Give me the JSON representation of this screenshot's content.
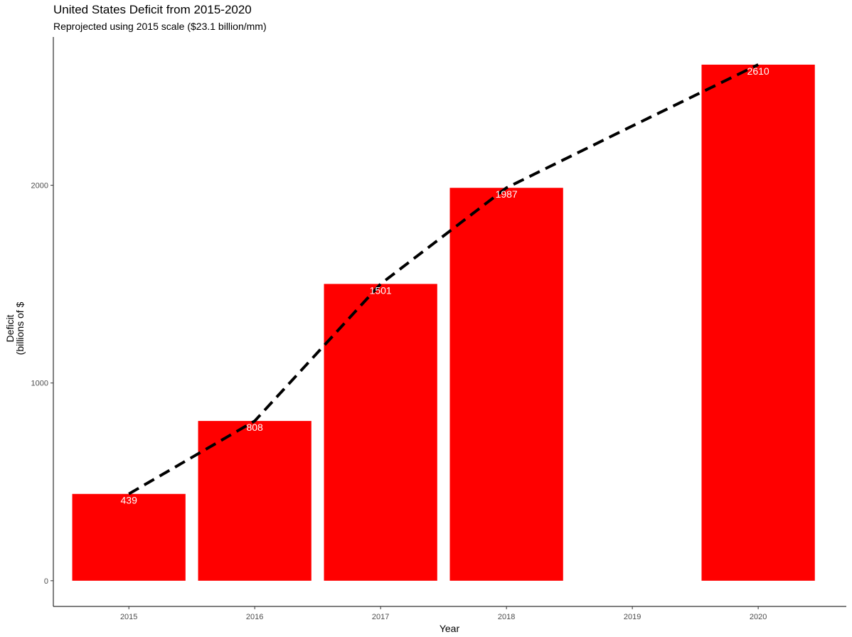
{
  "chart_data": {
    "type": "bar",
    "title": "United States Deficit from 2015-2020",
    "subtitle": "Reprojected using 2015 scale ($23.1 billion/mm)",
    "xlabel": "Year",
    "ylabel_line1": "Deficit",
    "ylabel_line2": "(billions of $",
    "categories": [
      "2015",
      "2016",
      "2017",
      "2018",
      "2019",
      "2020"
    ],
    "bars": [
      {
        "year": "2015",
        "value": 439,
        "label": "439"
      },
      {
        "year": "2016",
        "value": 808,
        "label": "808"
      },
      {
        "year": "2017",
        "value": 1501,
        "label": "1501"
      },
      {
        "year": "2018",
        "value": 1987,
        "label": "1987"
      },
      {
        "year": "2020",
        "value": 2610,
        "label": "2610"
      }
    ],
    "line": {
      "style": "dashed",
      "points": [
        {
          "x": 2015,
          "y": 439
        },
        {
          "x": 2016,
          "y": 808
        },
        {
          "x": 2017,
          "y": 1501
        },
        {
          "x": 2018,
          "y": 1987
        },
        {
          "x": 2019,
          "y": 2300
        },
        {
          "x": 2020,
          "y": 2610
        }
      ]
    },
    "yticks": [
      0,
      1000,
      2000
    ],
    "ytick_labels": [
      "0",
      "1000",
      "2000"
    ],
    "ylim": [
      -130,
      2750
    ],
    "xlim": [
      2014.4,
      2020.7
    ],
    "bar_color": "#ff0000",
    "label_color": "#ffffff",
    "line_color": "#000000",
    "grid": false
  }
}
